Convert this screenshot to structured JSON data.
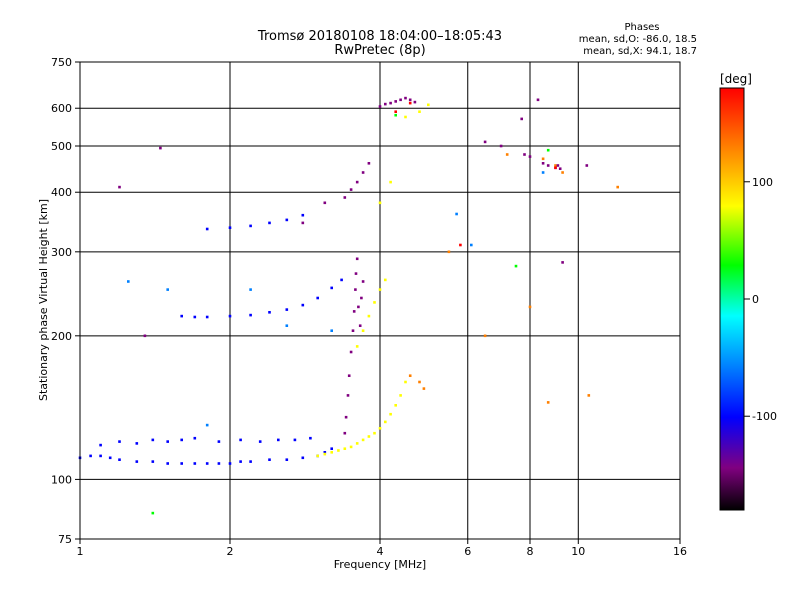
{
  "chart_data": {
    "type": "scatter",
    "title": "Tromsø 20180108 18:04:00–18:05:43",
    "subtitle": "RwPretec (8p)",
    "xlabel": "Frequency [MHz]",
    "ylabel": "Stationary phase Virtual Height [km]",
    "x_scale": "log",
    "y_scale": "log",
    "xlim": [
      1,
      16
    ],
    "ylim": [
      75,
      750
    ],
    "x_ticks": [
      1,
      2,
      4,
      6,
      8,
      10,
      16
    ],
    "y_ticks": [
      75,
      100,
      200,
      300,
      400,
      500,
      600,
      750
    ],
    "x_gridlines": [
      2,
      4,
      6,
      8,
      10
    ],
    "y_gridlines": [
      100,
      200,
      300,
      400,
      500,
      600
    ],
    "grid": true,
    "phase_stats": {
      "title": "Phases",
      "line_o": "mean, sd,O: -86.0, 18.5",
      "line_x": "mean, sd,X:  94.1, 18.7"
    },
    "colorbar": {
      "label": "[deg]",
      "min": -180,
      "max": 180,
      "ticks": [
        100,
        0,
        -100
      ],
      "colors": [
        "#ff0000",
        "#ff8000",
        "#ffff00",
        "#00ff00",
        "#00ffff",
        "#0080ff",
        "#0000ff",
        "#800080",
        "#000000"
      ]
    },
    "series": [
      {
        "phase": -110,
        "points": [
          [
            1.0,
            111
          ],
          [
            1.05,
            112
          ],
          [
            1.1,
            112
          ],
          [
            1.15,
            111
          ],
          [
            1.2,
            110
          ],
          [
            1.3,
            109
          ],
          [
            1.4,
            109
          ],
          [
            1.5,
            108
          ],
          [
            1.6,
            108
          ],
          [
            1.7,
            108
          ],
          [
            1.8,
            108
          ],
          [
            1.9,
            108
          ],
          [
            2.0,
            108
          ],
          [
            2.1,
            109
          ],
          [
            2.2,
            109
          ],
          [
            2.4,
            110
          ],
          [
            2.6,
            110
          ],
          [
            2.8,
            111
          ],
          [
            3.0,
            112
          ],
          [
            3.1,
            114
          ],
          [
            3.2,
            116
          ]
        ]
      },
      {
        "phase": -105,
        "points": [
          [
            1.1,
            118
          ],
          [
            1.2,
            120
          ],
          [
            1.3,
            119
          ],
          [
            1.4,
            121
          ],
          [
            1.5,
            120
          ],
          [
            1.6,
            121
          ],
          [
            1.7,
            122
          ],
          [
            1.9,
            120
          ],
          [
            2.1,
            121
          ],
          [
            2.3,
            120
          ],
          [
            2.5,
            121
          ],
          [
            2.7,
            121
          ],
          [
            2.9,
            122
          ]
        ]
      },
      {
        "phase": -110,
        "points": [
          [
            1.6,
            220
          ],
          [
            1.7,
            219
          ],
          [
            1.8,
            219
          ],
          [
            2.0,
            220
          ],
          [
            2.2,
            221
          ],
          [
            2.4,
            224
          ],
          [
            2.6,
            227
          ],
          [
            2.8,
            232
          ],
          [
            3.0,
            240
          ],
          [
            3.2,
            252
          ],
          [
            3.35,
            262
          ]
        ]
      },
      {
        "phase": -110,
        "points": [
          [
            1.8,
            335
          ],
          [
            2.0,
            337
          ],
          [
            2.2,
            340
          ],
          [
            2.4,
            345
          ],
          [
            2.6,
            350
          ],
          [
            2.8,
            358
          ]
        ]
      },
      {
        "phase": -120,
        "points": [
          [
            3.4,
            125
          ],
          [
            3.42,
            135
          ],
          [
            3.45,
            150
          ],
          [
            3.47,
            165
          ],
          [
            3.5,
            185
          ],
          [
            3.53,
            205
          ],
          [
            3.55,
            225
          ],
          [
            3.57,
            250
          ],
          [
            3.58,
            270
          ],
          [
            3.6,
            290
          ],
          [
            3.62,
            230
          ],
          [
            3.65,
            210
          ],
          [
            3.67,
            240
          ],
          [
            3.7,
            260
          ]
        ]
      },
      {
        "phase": 100,
        "points": [
          [
            3.0,
            112
          ],
          [
            3.1,
            113
          ],
          [
            3.2,
            114
          ],
          [
            3.3,
            115
          ],
          [
            3.4,
            116
          ],
          [
            3.5,
            117
          ],
          [
            3.6,
            119
          ],
          [
            3.7,
            121
          ],
          [
            3.8,
            123
          ],
          [
            3.9,
            125
          ],
          [
            4.0,
            128
          ],
          [
            4.1,
            132
          ],
          [
            4.2,
            137
          ],
          [
            4.3,
            143
          ],
          [
            4.4,
            150
          ],
          [
            4.5,
            160
          ]
        ]
      },
      {
        "phase": 100,
        "points": [
          [
            3.6,
            190
          ],
          [
            3.7,
            205
          ],
          [
            3.8,
            220
          ],
          [
            3.9,
            235
          ],
          [
            4.0,
            250
          ],
          [
            4.1,
            262
          ],
          [
            4.0,
            380
          ],
          [
            4.2,
            420
          ],
          [
            4.5,
            575
          ],
          [
            4.8,
            590
          ],
          [
            5.0,
            610
          ]
        ]
      },
      {
        "phase": -115,
        "points": [
          [
            3.4,
            390
          ],
          [
            3.5,
            405
          ],
          [
            3.6,
            420
          ],
          [
            3.7,
            440
          ],
          [
            3.8,
            460
          ],
          [
            4.0,
            605
          ],
          [
            4.1,
            612
          ],
          [
            4.2,
            615
          ],
          [
            4.3,
            620
          ],
          [
            4.4,
            625
          ],
          [
            4.5,
            630
          ],
          [
            4.6,
            625
          ],
          [
            4.7,
            618
          ]
        ]
      },
      {
        "phase": -130,
        "points": [
          [
            7.8,
            480
          ],
          [
            8.0,
            475
          ],
          [
            8.5,
            460
          ],
          [
            8.7,
            455
          ],
          [
            9.0,
            450
          ],
          [
            9.2,
            448
          ]
        ]
      },
      {
        "phase": 150,
        "points": [
          [
            8.5,
            470
          ],
          [
            9.0,
            455
          ],
          [
            9.3,
            440
          ],
          [
            4.8,
            160
          ],
          [
            4.9,
            155
          ],
          [
            12.0,
            410
          ]
        ]
      },
      {
        "phase": -60,
        "points": [
          [
            1.25,
            260
          ],
          [
            1.5,
            250
          ],
          [
            2.2,
            250
          ],
          [
            2.6,
            210
          ],
          [
            3.2,
            205
          ],
          [
            5.7,
            360
          ],
          [
            6.1,
            310
          ],
          [
            8.5,
            440
          ],
          [
            1.8,
            130
          ]
        ]
      },
      {
        "phase": -120,
        "points": [
          [
            1.2,
            410
          ],
          [
            1.35,
            200
          ],
          [
            1.45,
            495
          ],
          [
            2.8,
            345
          ],
          [
            3.1,
            380
          ],
          [
            6.5,
            510
          ],
          [
            7.0,
            500
          ],
          [
            7.7,
            570
          ],
          [
            8.3,
            625
          ],
          [
            9.1,
            455
          ],
          [
            9.3,
            285
          ],
          [
            10.4,
            455
          ]
        ]
      },
      {
        "phase": 30,
        "points": [
          [
            8.7,
            490
          ],
          [
            4.3,
            580
          ],
          [
            1.4,
            85
          ],
          [
            7.5,
            280
          ]
        ]
      },
      {
        "phase": 130,
        "points": [
          [
            5.5,
            300
          ],
          [
            6.5,
            200
          ],
          [
            7.2,
            480
          ],
          [
            8.0,
            230
          ],
          [
            4.6,
            165
          ],
          [
            10.5,
            150
          ],
          [
            8.7,
            145
          ]
        ]
      },
      {
        "phase": 180,
        "points": [
          [
            4.3,
            590
          ],
          [
            4.6,
            615
          ],
          [
            9.0,
            450
          ],
          [
            5.8,
            310
          ]
        ]
      }
    ]
  }
}
